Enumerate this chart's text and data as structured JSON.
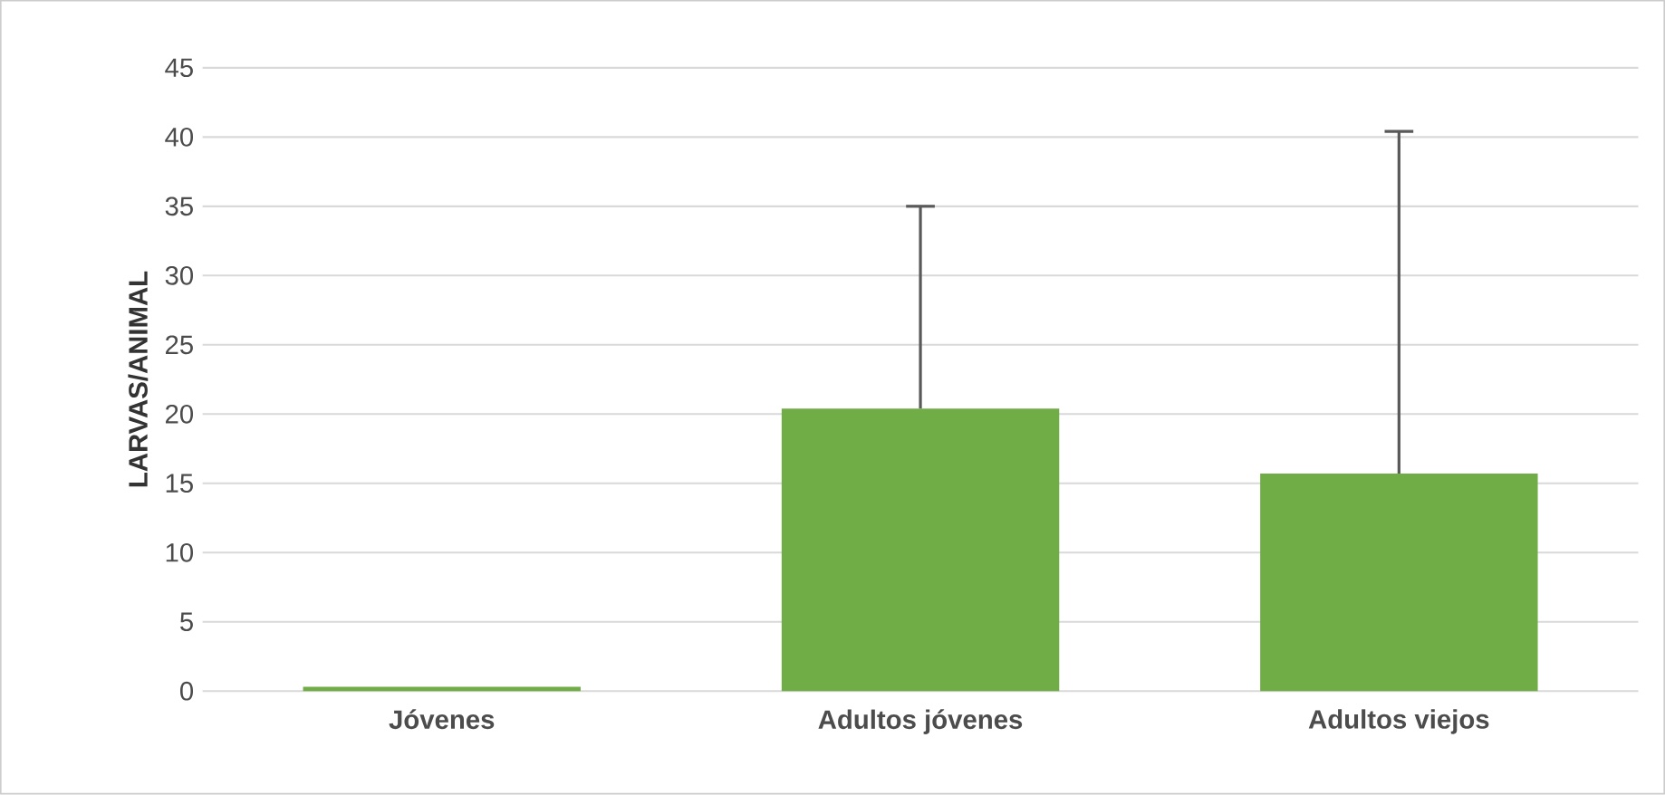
{
  "chart_data": {
    "type": "bar",
    "ylabel": "LARVAS/ANIMAL",
    "categories": [
      "Jóvenes",
      "Adultos jóvenes",
      "Adultos viejos"
    ],
    "values": [
      0.3,
      20.4,
      15.7
    ],
    "errors": [
      null,
      [
        20.4,
        35
      ],
      [
        15.7,
        40.4
      ]
    ],
    "color": "#70ad47",
    "ylim": [
      0,
      45
    ],
    "yticks": [
      0,
      5,
      10,
      15,
      20,
      25,
      30,
      35,
      40,
      45
    ],
    "grid": "y"
  }
}
